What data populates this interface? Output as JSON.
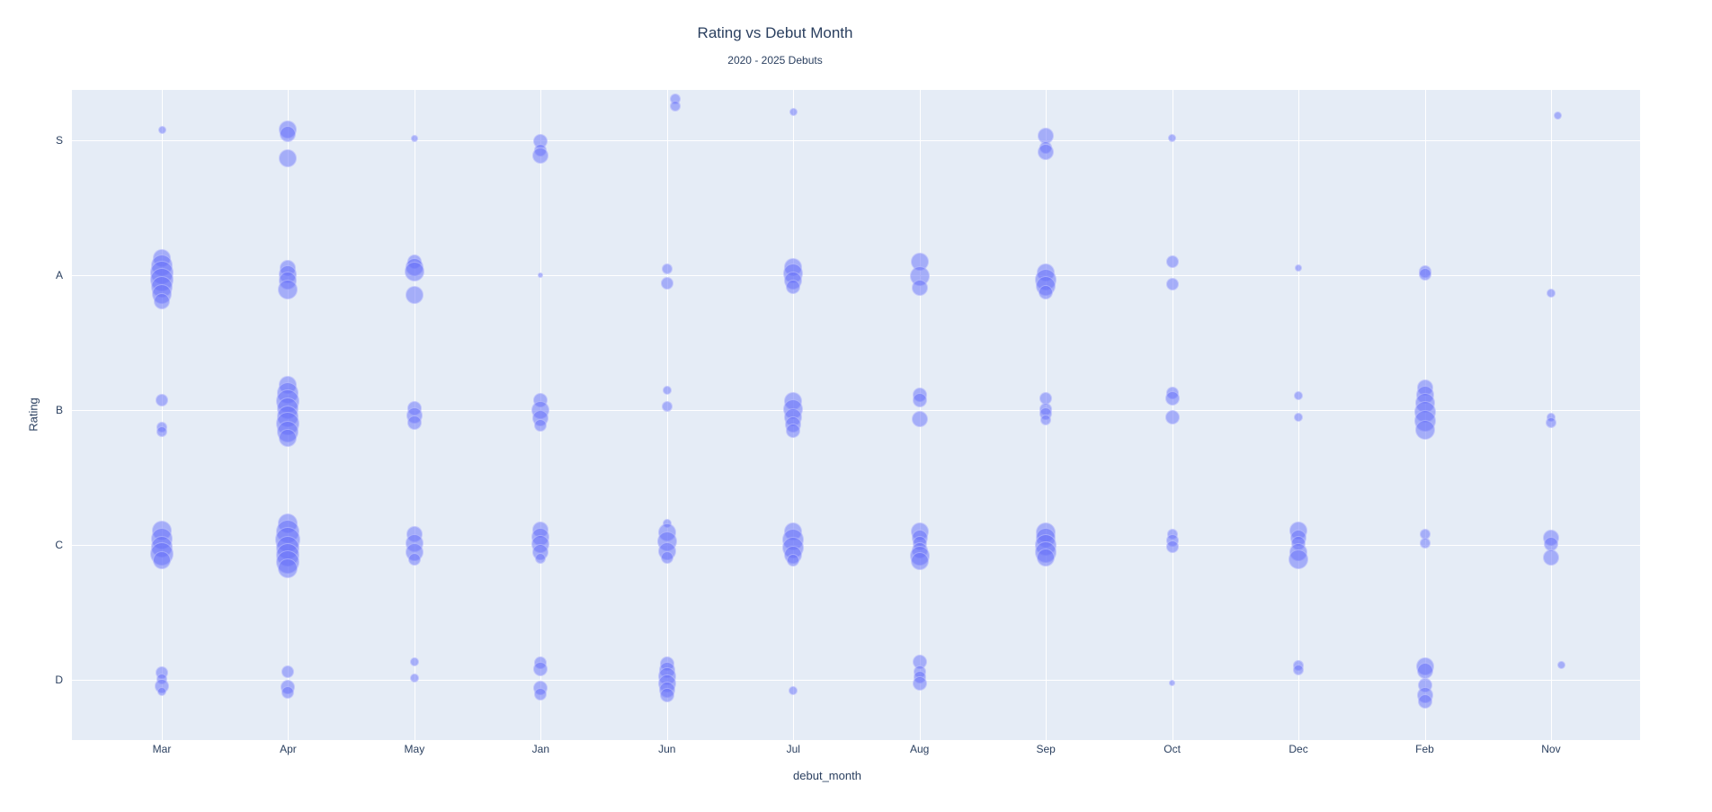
{
  "header": {
    "title": "Rating vs Debut Month",
    "subtitle": "2020 - 2025 Debuts"
  },
  "colors": {
    "plot_background": "#e5ecf6",
    "paper_background": "#ffffff",
    "gridline": "#ffffff",
    "marker_fill": "rgba(99,110,250,0.5)",
    "marker_line": "rgba(255,255,255,0.35)",
    "text": "#2a3f5f"
  },
  "chart_data": {
    "type": "scatter",
    "subtype": "jittered-categorical-bubble",
    "title": "Rating vs Debut Month",
    "subtitle": "2020 - 2025 Debuts",
    "xlabel": "debut_month",
    "ylabel": "Rating",
    "x_categories": [
      "Mar",
      "Apr",
      "May",
      "Jan",
      "Jun",
      "Jul",
      "Aug",
      "Sep",
      "Oct",
      "Dec",
      "Feb",
      "Nov"
    ],
    "y_categories_top_to_bottom": [
      "S",
      "A",
      "B",
      "C",
      "D"
    ],
    "grid": true,
    "legend": "none",
    "point_format": "[month, rating, dy_px_offset_from_category_line, radius_px, optional_dx_px]",
    "points": [
      [
        "Mar",
        "S",
        -12,
        4.5
      ],
      [
        "Apr",
        "S",
        -12,
        10
      ],
      [
        "Apr",
        "S",
        -7,
        9
      ],
      [
        "Apr",
        "S",
        20,
        10
      ],
      [
        "May",
        "S",
        -2,
        4
      ],
      [
        "Jan",
        "S",
        1,
        8
      ],
      [
        "Jan",
        "S",
        11,
        7
      ],
      [
        "Jan",
        "S",
        17,
        9
      ],
      [
        "Jun",
        "S",
        -46,
        6,
        9
      ],
      [
        "Jun",
        "S",
        -38,
        6,
        9
      ],
      [
        "Jul",
        "S",
        -32,
        4.5
      ],
      [
        "Sep",
        "S",
        -5,
        9
      ],
      [
        "Sep",
        "S",
        8,
        7
      ],
      [
        "Sep",
        "S",
        13,
        9
      ],
      [
        "Oct",
        "S",
        -3,
        4.5
      ],
      [
        "Nov",
        "S",
        -28,
        4.5,
        8
      ],
      [
        "Mar",
        "A",
        -19,
        10
      ],
      [
        "Mar",
        "A",
        -11,
        12
      ],
      [
        "Mar",
        "A",
        -3,
        13
      ],
      [
        "Mar",
        "A",
        5,
        13
      ],
      [
        "Mar",
        "A",
        13,
        12
      ],
      [
        "Mar",
        "A",
        21,
        11
      ],
      [
        "Mar",
        "A",
        29,
        9
      ],
      [
        "Apr",
        "A",
        -8,
        9
      ],
      [
        "Apr",
        "A",
        -1,
        10
      ],
      [
        "Apr",
        "A",
        6,
        10
      ],
      [
        "Apr",
        "A",
        16,
        11
      ],
      [
        "May",
        "A",
        -15,
        8
      ],
      [
        "May",
        "A",
        -9,
        10
      ],
      [
        "May",
        "A",
        -4,
        11
      ],
      [
        "May",
        "A",
        22,
        10
      ],
      [
        "Jan",
        "A",
        0,
        3
      ],
      [
        "Jun",
        "A",
        -7,
        6
      ],
      [
        "Jun",
        "A",
        9,
        7
      ],
      [
        "Jul",
        "A",
        -9,
        10
      ],
      [
        "Jul",
        "A",
        -2,
        11
      ],
      [
        "Jul",
        "A",
        6,
        10
      ],
      [
        "Jul",
        "A",
        13,
        8
      ],
      [
        "Aug",
        "A",
        -15,
        10
      ],
      [
        "Aug",
        "A",
        1,
        11
      ],
      [
        "Aug",
        "A",
        14,
        9
      ],
      [
        "Sep",
        "A",
        -3,
        10
      ],
      [
        "Sep",
        "A",
        5,
        12
      ],
      [
        "Sep",
        "A",
        12,
        11
      ],
      [
        "Sep",
        "A",
        19,
        8
      ],
      [
        "Oct",
        "A",
        -15,
        7
      ],
      [
        "Oct",
        "A",
        10,
        7
      ],
      [
        "Dec",
        "A",
        -8,
        4
      ],
      [
        "Feb",
        "A",
        -4,
        7
      ],
      [
        "Feb",
        "A",
        -1,
        7
      ],
      [
        "Nov",
        "A",
        20,
        5
      ],
      [
        "Mar",
        "B",
        -11,
        7
      ],
      [
        "Mar",
        "B",
        19,
        6
      ],
      [
        "Mar",
        "B",
        24,
        6
      ],
      [
        "Apr",
        "B",
        -28,
        10
      ],
      [
        "Apr",
        "B",
        -19,
        12
      ],
      [
        "Apr",
        "B",
        -10,
        13
      ],
      [
        "Apr",
        "B",
        -2,
        12
      ],
      [
        "Apr",
        "B",
        7,
        12
      ],
      [
        "Apr",
        "B",
        15,
        13
      ],
      [
        "Apr",
        "B",
        24,
        12
      ],
      [
        "Apr",
        "B",
        31,
        10
      ],
      [
        "May",
        "B",
        -2,
        8
      ],
      [
        "May",
        "B",
        6,
        9
      ],
      [
        "May",
        "B",
        14,
        8
      ],
      [
        "Jan",
        "B",
        -11,
        8
      ],
      [
        "Jan",
        "B",
        0,
        10
      ],
      [
        "Jan",
        "B",
        9,
        9
      ],
      [
        "Jan",
        "B",
        17,
        7
      ],
      [
        "Jun",
        "B",
        -22,
        5
      ],
      [
        "Jun",
        "B",
        -4,
        6
      ],
      [
        "Jul",
        "B",
        -10,
        10
      ],
      [
        "Jul",
        "B",
        -1,
        11
      ],
      [
        "Jul",
        "B",
        8,
        10
      ],
      [
        "Jul",
        "B",
        16,
        9
      ],
      [
        "Jul",
        "B",
        23,
        8
      ],
      [
        "Aug",
        "B",
        -17,
        8
      ],
      [
        "Aug",
        "B",
        -11,
        8
      ],
      [
        "Aug",
        "B",
        10,
        9
      ],
      [
        "Sep",
        "B",
        -13,
        7
      ],
      [
        "Sep",
        "B",
        -1,
        7
      ],
      [
        "Sep",
        "B",
        4,
        7
      ],
      [
        "Sep",
        "B",
        11,
        6
      ],
      [
        "Oct",
        "B",
        -19,
        7
      ],
      [
        "Oct",
        "B",
        -13,
        8
      ],
      [
        "Oct",
        "B",
        8,
        8
      ],
      [
        "Dec",
        "B",
        -16,
        5
      ],
      [
        "Dec",
        "B",
        8,
        5
      ],
      [
        "Feb",
        "B",
        -25,
        9
      ],
      [
        "Feb",
        "B",
        -17,
        10
      ],
      [
        "Feb",
        "B",
        -8,
        11
      ],
      [
        "Feb",
        "B",
        2,
        12
      ],
      [
        "Feb",
        "B",
        12,
        12
      ],
      [
        "Feb",
        "B",
        22,
        11
      ],
      [
        "Nov",
        "B",
        8,
        5
      ],
      [
        "Nov",
        "B",
        14,
        6
      ],
      [
        "Mar",
        "C",
        -16,
        11
      ],
      [
        "Mar",
        "C",
        -7,
        12
      ],
      [
        "Mar",
        "C",
        2,
        12
      ],
      [
        "Mar",
        "C",
        10,
        13
      ],
      [
        "Mar",
        "C",
        17,
        10
      ],
      [
        "Apr",
        "C",
        -24,
        11
      ],
      [
        "Apr",
        "C",
        -15,
        13
      ],
      [
        "Apr",
        "C",
        -6,
        14
      ],
      [
        "Apr",
        "C",
        3,
        13
      ],
      [
        "Apr",
        "C",
        11,
        13
      ],
      [
        "Apr",
        "C",
        19,
        13
      ],
      [
        "Apr",
        "C",
        26,
        11
      ],
      [
        "May",
        "C",
        -12,
        9
      ],
      [
        "May",
        "C",
        -2,
        10
      ],
      [
        "May",
        "C",
        8,
        10
      ],
      [
        "May",
        "C",
        16,
        7
      ],
      [
        "Jan",
        "C",
        -17,
        9
      ],
      [
        "Jan",
        "C",
        -9,
        10
      ],
      [
        "Jan",
        "C",
        -1,
        10
      ],
      [
        "Jan",
        "C",
        8,
        9
      ],
      [
        "Jan",
        "C",
        15,
        6
      ],
      [
        "Jun",
        "C",
        -24,
        5
      ],
      [
        "Jun",
        "C",
        -14,
        10
      ],
      [
        "Jun",
        "C",
        -4,
        11
      ],
      [
        "Jun",
        "C",
        7,
        10
      ],
      [
        "Jun",
        "C",
        14,
        7
      ],
      [
        "Jul",
        "C",
        -15,
        10
      ],
      [
        "Jul",
        "C",
        -6,
        12
      ],
      [
        "Jul",
        "C",
        3,
        12
      ],
      [
        "Jul",
        "C",
        11,
        10
      ],
      [
        "Jul",
        "C",
        17,
        7
      ],
      [
        "Aug",
        "C",
        -15,
        10
      ],
      [
        "Aug",
        "C",
        -8,
        9
      ],
      [
        "Aug",
        "C",
        -2,
        8
      ],
      [
        "Aug",
        "C",
        6,
        9
      ],
      [
        "Aug",
        "C",
        12,
        11
      ],
      [
        "Aug",
        "C",
        18,
        10
      ],
      [
        "Sep",
        "C",
        -14,
        11
      ],
      [
        "Sep",
        "C",
        -8,
        11
      ],
      [
        "Sep",
        "C",
        0,
        12
      ],
      [
        "Sep",
        "C",
        8,
        12
      ],
      [
        "Sep",
        "C",
        14,
        10
      ],
      [
        "Oct",
        "C",
        -12,
        6
      ],
      [
        "Oct",
        "C",
        -5,
        7
      ],
      [
        "Oct",
        "C",
        2,
        7
      ],
      [
        "Dec",
        "C",
        -16,
        10
      ],
      [
        "Dec",
        "C",
        -8,
        9
      ],
      [
        "Dec",
        "C",
        -2,
        8
      ],
      [
        "Dec",
        "C",
        8,
        10
      ],
      [
        "Dec",
        "C",
        16,
        11
      ],
      [
        "Feb",
        "C",
        -12,
        6
      ],
      [
        "Feb",
        "C",
        -2,
        6
      ],
      [
        "Nov",
        "C",
        -8,
        9
      ],
      [
        "Nov",
        "C",
        -1,
        8
      ],
      [
        "Nov",
        "C",
        14,
        9
      ],
      [
        "Mar",
        "D",
        -8,
        7
      ],
      [
        "Mar",
        "D",
        -1,
        6
      ],
      [
        "Mar",
        "D",
        7,
        8
      ],
      [
        "Mar",
        "D",
        13,
        5
      ],
      [
        "Apr",
        "D",
        -9,
        7
      ],
      [
        "Apr",
        "D",
        8,
        8
      ],
      [
        "Apr",
        "D",
        14,
        7
      ],
      [
        "May",
        "D",
        -20,
        5
      ],
      [
        "May",
        "D",
        -2,
        5
      ],
      [
        "Jan",
        "D",
        -19,
        7
      ],
      [
        "Jan",
        "D",
        -12,
        8
      ],
      [
        "Jan",
        "D",
        9,
        8
      ],
      [
        "Jan",
        "D",
        16,
        7
      ],
      [
        "Jun",
        "D",
        -18,
        8
      ],
      [
        "Jun",
        "D",
        -11,
        9
      ],
      [
        "Jun",
        "D",
        -4,
        10
      ],
      [
        "Jun",
        "D",
        4,
        10
      ],
      [
        "Jun",
        "D",
        11,
        9
      ],
      [
        "Jun",
        "D",
        17,
        8
      ],
      [
        "Jul",
        "D",
        12,
        5
      ],
      [
        "Aug",
        "D",
        -20,
        8
      ],
      [
        "Aug",
        "D",
        -9,
        7
      ],
      [
        "Aug",
        "D",
        -3,
        7
      ],
      [
        "Aug",
        "D",
        4,
        8
      ],
      [
        "Oct",
        "D",
        3,
        3.5
      ],
      [
        "Dec",
        "D",
        -16,
        6
      ],
      [
        "Dec",
        "D",
        -11,
        6
      ],
      [
        "Feb",
        "D",
        -15,
        10
      ],
      [
        "Feb",
        "D",
        -10,
        9
      ],
      [
        "Feb",
        "D",
        6,
        8
      ],
      [
        "Feb",
        "D",
        17,
        9
      ],
      [
        "Feb",
        "D",
        24,
        8
      ],
      [
        "Nov",
        "D",
        -17,
        4.5,
        12
      ]
    ]
  }
}
